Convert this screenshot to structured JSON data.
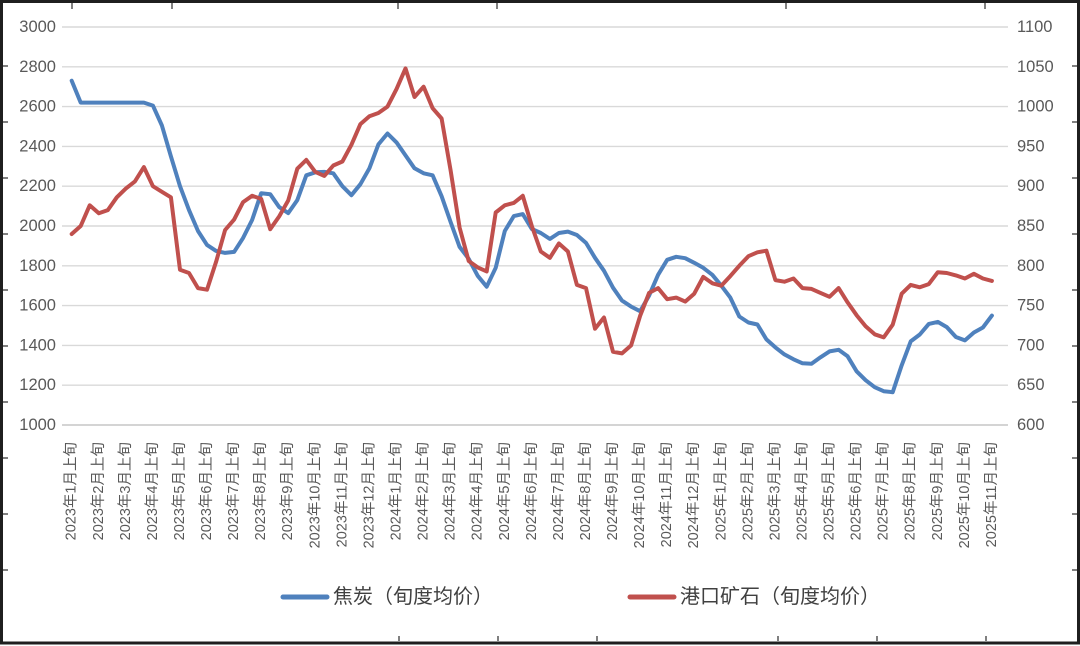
{
  "chart_data": {
    "type": "line",
    "title": "",
    "grid": "horizontal-only",
    "legend_position": "bottom",
    "points_per_month": 3,
    "x_month_labels": [
      "2023年1月上旬",
      "2023年2月上旬",
      "2023年3月上旬",
      "2023年4月上旬",
      "2023年5月上旬",
      "2023年6月上旬",
      "2023年7月上旬",
      "2023年8月上旬",
      "2023年9月上旬",
      "2023年10月上旬",
      "2023年11月上旬",
      "2023年12月上旬",
      "2024年1月上旬",
      "2024年2月上旬",
      "2024年3月上旬",
      "2024年4月上旬",
      "2024年5月上旬",
      "2024年6月上旬",
      "2024年7月上旬",
      "2024年8月上旬",
      "2024年9月上旬",
      "2024年10月上旬",
      "2024年11月上旬",
      "2024年12月上旬",
      "2025年1月上旬",
      "2025年2月上旬",
      "2025年3月上旬",
      "2025年4月上旬",
      "2025年5月上旬",
      "2025年6月上旬",
      "2025年7月上旬",
      "2025年8月上旬",
      "2025年9月上旬",
      "2025年10月上旬",
      "2025年11月上旬"
    ],
    "left_axis": {
      "min": 1000,
      "max": 3000,
      "step": 200,
      "ticks": [
        3000,
        2800,
        2600,
        2400,
        2200,
        2000,
        1800,
        1600,
        1400,
        1200,
        1000
      ]
    },
    "right_axis": {
      "min": 600,
      "max": 1100,
      "step": 50,
      "ticks": [
        1100,
        1050,
        1000,
        950,
        900,
        850,
        800,
        750,
        700,
        650,
        600
      ]
    },
    "series": [
      {
        "name": "焦炭（旬度均价）",
        "axis": "left",
        "color": "#4F81BD",
        "values": [
          2730,
          2620,
          2620,
          2620,
          2620,
          2620,
          2620,
          2620,
          2620,
          2605,
          2505,
          2350,
          2200,
          2080,
          1975,
          1905,
          1875,
          1865,
          1870,
          1940,
          2030,
          2165,
          2160,
          2095,
          2065,
          2130,
          2255,
          2270,
          2272,
          2265,
          2200,
          2155,
          2210,
          2290,
          2410,
          2465,
          2420,
          2355,
          2290,
          2265,
          2255,
          2150,
          2020,
          1895,
          1835,
          1750,
          1695,
          1790,
          1975,
          2050,
          2060,
          1985,
          1965,
          1935,
          1965,
          1972,
          1955,
          1915,
          1840,
          1775,
          1690,
          1625,
          1595,
          1572,
          1650,
          1755,
          1830,
          1845,
          1838,
          1815,
          1790,
          1755,
          1700,
          1640,
          1545,
          1515,
          1505,
          1430,
          1390,
          1355,
          1330,
          1310,
          1308,
          1340,
          1370,
          1378,
          1345,
          1270,
          1225,
          1190,
          1170,
          1165,
          1300,
          1420,
          1455,
          1508,
          1518,
          1492,
          1442,
          1425,
          1465,
          1490,
          1550
        ]
      },
      {
        "name": "港口矿石（旬度均价）",
        "axis": "right",
        "color": "#C0504D",
        "values": [
          840,
          850,
          876,
          866,
          870,
          886,
          897,
          906,
          924,
          900,
          893,
          886,
          795,
          791,
          772,
          770,
          805,
          845,
          858,
          880,
          888,
          884,
          846,
          862,
          882,
          922,
          933,
          918,
          913,
          926,
          931,
          952,
          978,
          988,
          992,
          1000,
          1022,
          1048,
          1012,
          1025,
          998,
          985,
          920,
          848,
          806,
          798,
          793,
          867,
          876,
          879,
          888,
          850,
          818,
          810,
          828,
          818,
          776,
          772,
          721,
          735,
          692,
          690,
          700,
          737,
          766,
          772,
          758,
          760,
          755,
          765,
          786,
          778,
          775,
          787,
          800,
          812,
          817,
          819,
          782,
          780,
          784,
          772,
          771,
          766,
          761,
          772,
          754,
          738,
          724,
          714,
          710,
          726,
          765,
          776,
          773,
          777,
          792,
          791,
          788,
          784,
          790,
          784,
          781
        ]
      }
    ],
    "legend": [
      {
        "label": "焦炭（旬度均价）",
        "color": "#4F81BD"
      },
      {
        "label": "港口矿石（旬度均价）",
        "color": "#C0504D"
      }
    ],
    "colors": {
      "gridline": "#d9d9d9",
      "bottom_gridline": "#c6c6c6",
      "axis_text": "#595959",
      "legend_text": "#404040",
      "frame_border": "#1f1f1f"
    }
  }
}
